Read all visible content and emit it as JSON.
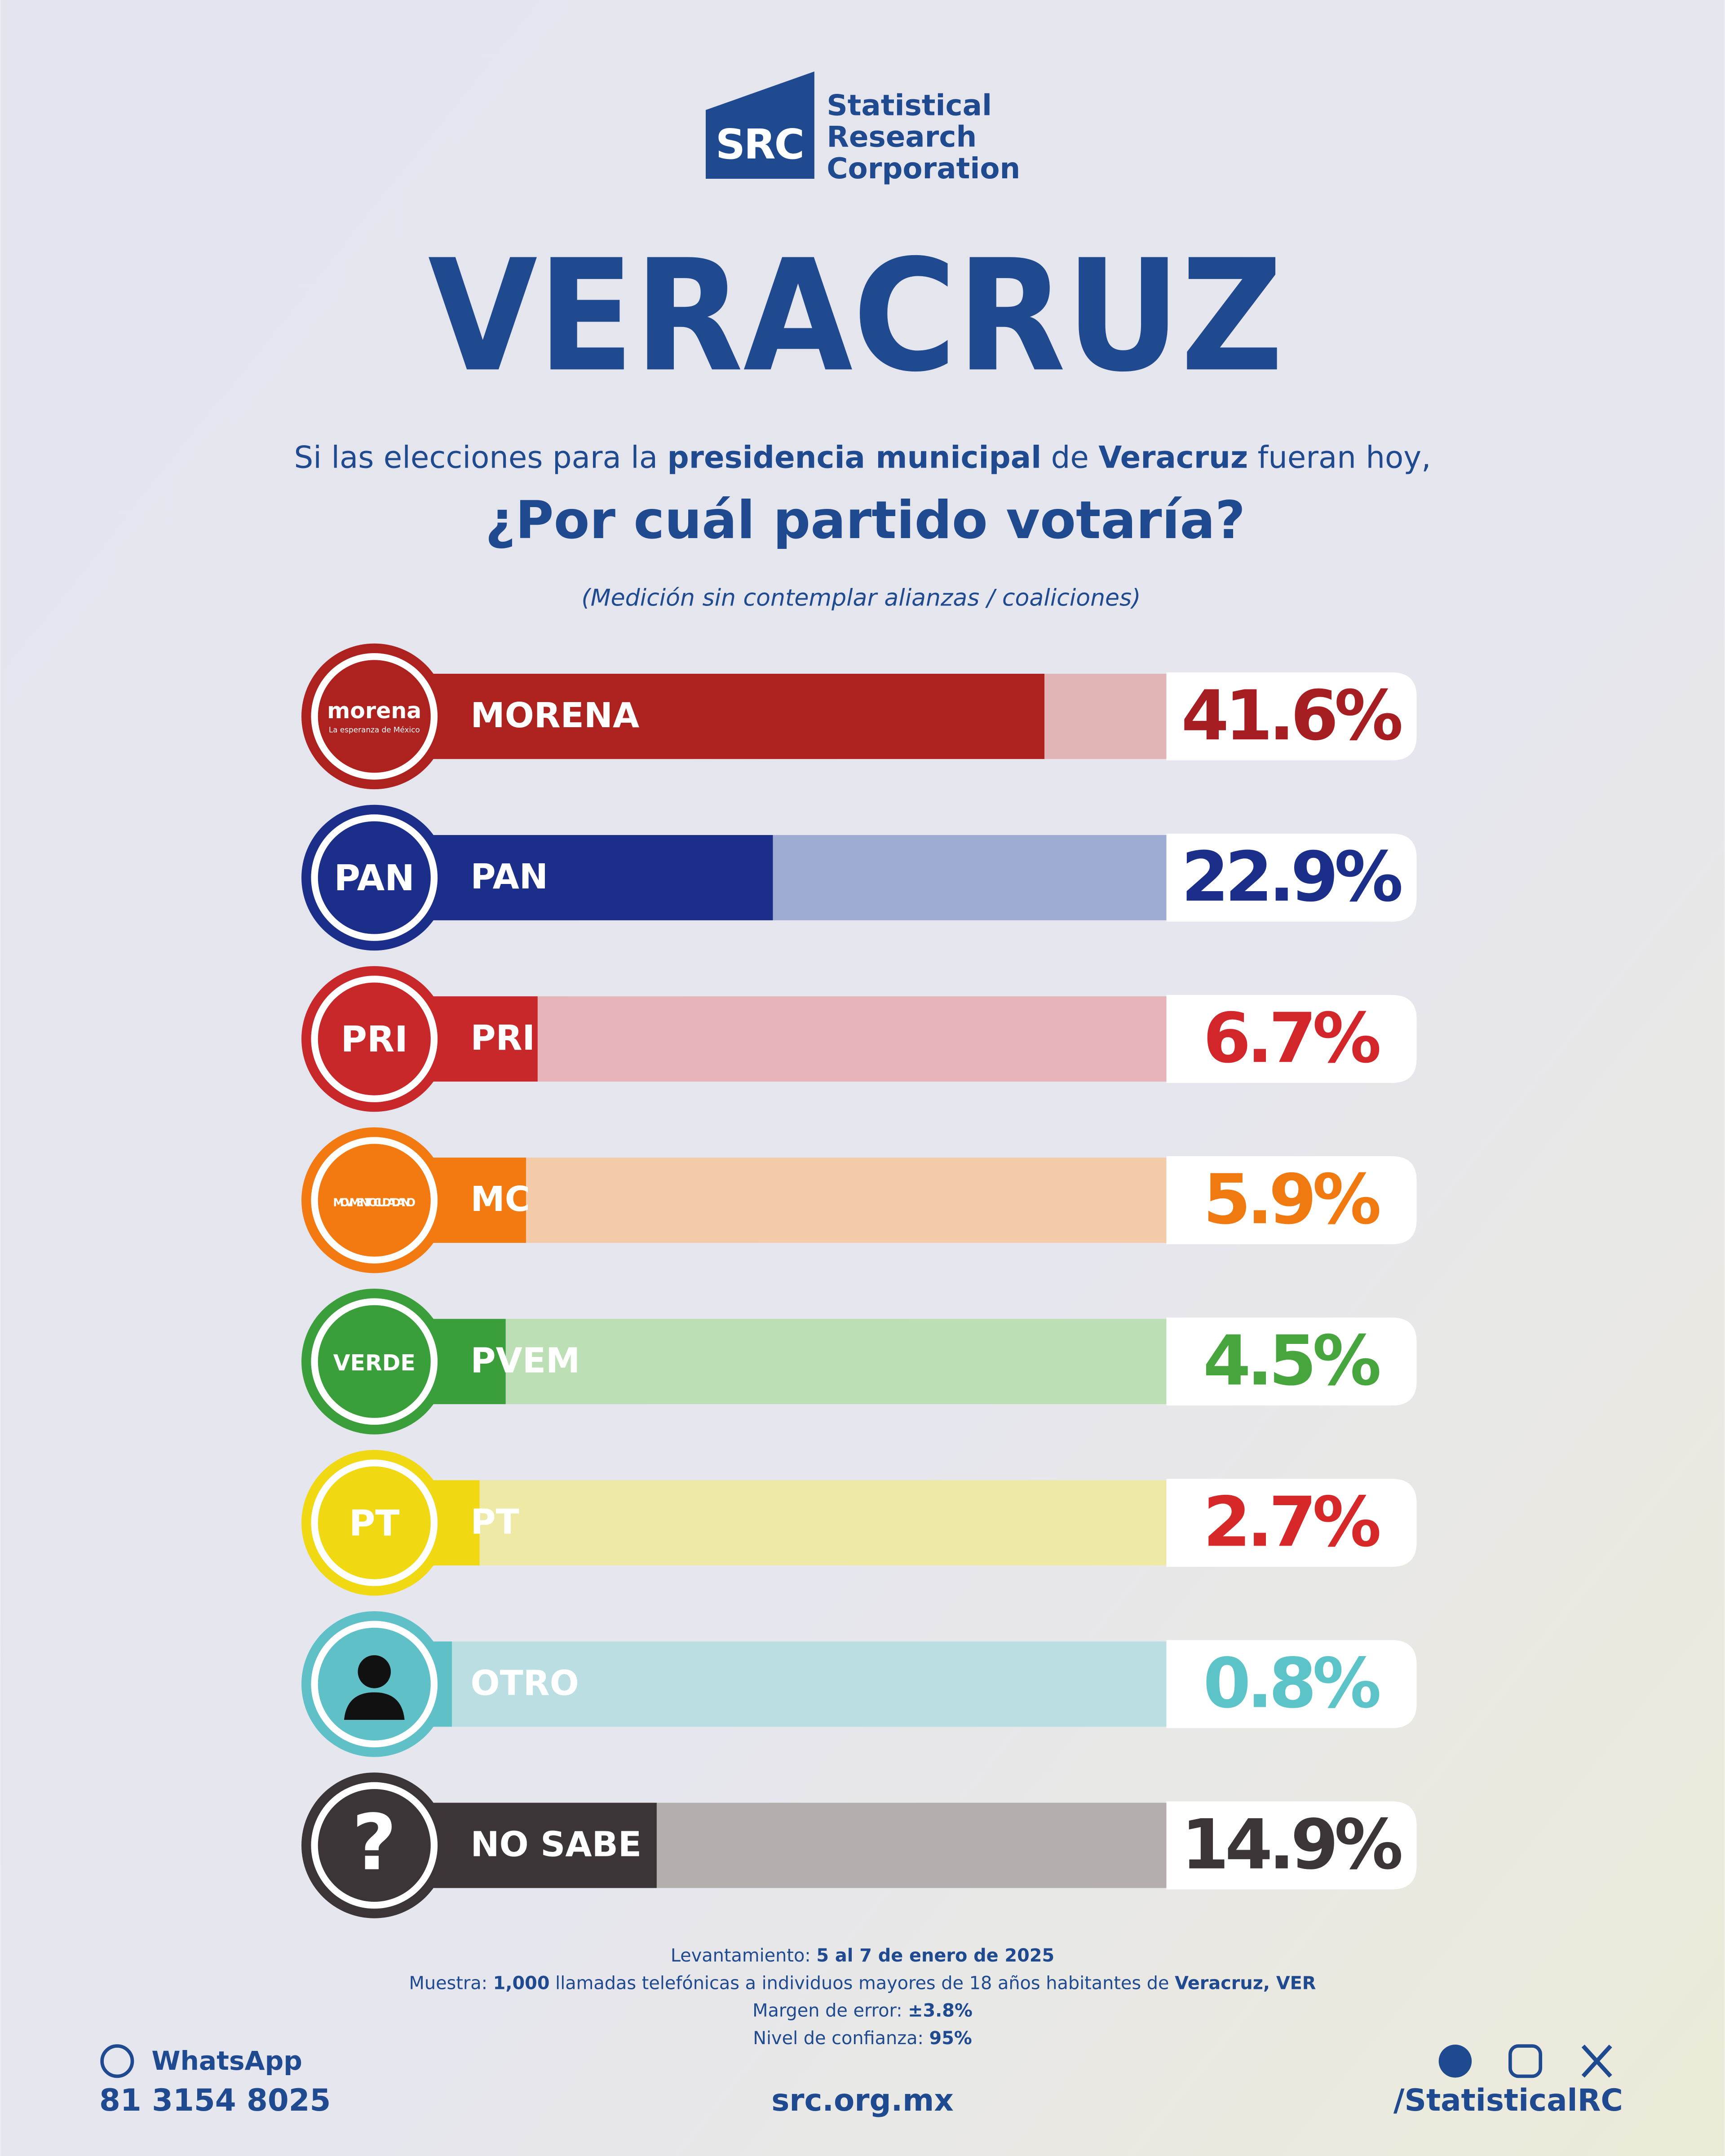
{
  "chart_data": {
    "type": "hbar",
    "brand": {
      "mark": "SRC",
      "lines": [
        "Statistical",
        "Research",
        "Corporation"
      ]
    },
    "title": "VERACRUZ",
    "subtitle": [
      "Si las elecciones para la ",
      "presidencia municipal",
      " de ",
      "Veracruz",
      " fueran hoy,"
    ],
    "question": "¿Por cuál partido votaría?",
    "note": "(Medición sin contemplar alianzas / coaliciones)",
    "categories": [
      "MORENA",
      "PAN",
      "PRI",
      "MC",
      "PVEM",
      "PT",
      "OTRO",
      "NO SABE"
    ],
    "values": [
      41.6,
      22.9,
      6.7,
      5.9,
      4.5,
      2.7,
      0.8,
      14.9
    ],
    "value_labels": [
      "41.6%",
      "22.9%",
      "6.7%",
      "5.9%",
      "4.5%",
      "2.7%",
      "0.8%",
      "14.9%"
    ],
    "colors": [
      "#ad211e",
      "#1b2f8a",
      "#c8282a",
      "#f27a10",
      "#3a9e3a",
      "#f0d812",
      "#5fc0c8",
      "#3c3537"
    ],
    "track_colors": [
      "#e1b4b6",
      "#9eacd3",
      "#e6b3b8",
      "#f3cba9",
      "#bcdfb6",
      "#eeeaa6",
      "#bbdee3",
      "#b4adad"
    ],
    "label_colors": [
      "#a61e22",
      "#1a2e8a",
      "#d2262a",
      "#f07a10",
      "#46a53c",
      "#d62828",
      "#5cc4c9",
      "#3b3537"
    ],
    "logos": [
      "morena",
      "PAN",
      "PRI",
      "MOVIMIENTO CIUDADANO",
      "VERDE",
      "PT",
      null,
      "?"
    ],
    "logo_taglines": [
      "La esperanza de México",
      null,
      null,
      null,
      null,
      null,
      null,
      null
    ],
    "xlim": [
      0,
      50
    ],
    "methodology": [
      [
        "Levantamiento: ",
        "5 al 7 de enero de 2025"
      ],
      [
        "Muestra: ",
        "1,000",
        " llamadas telefónicas a individuos mayores de 18 años habitantes de ",
        "Veracruz, VER"
      ],
      [
        "Margen de error: ",
        "±3.8%"
      ],
      [
        "Nivel de confianza: ",
        "95%"
      ]
    ],
    "contact": {
      "whatsapp_label": "WhatsApp",
      "phone": "81 3154 8025",
      "website": "src.org.mx",
      "social": "/StatisticalRC"
    }
  }
}
